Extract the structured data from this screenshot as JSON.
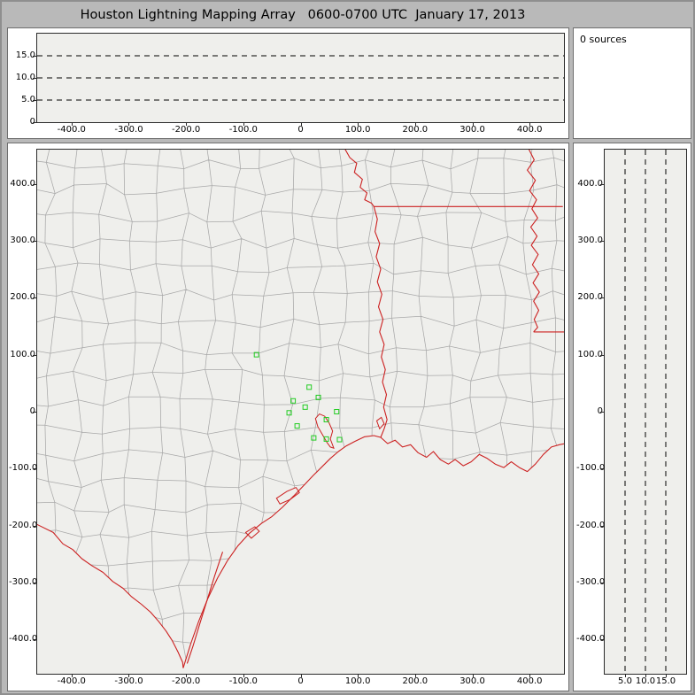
{
  "title": "Houston Lightning Mapping Array   0600-0700 UTC  January 17, 2013",
  "sources_label": "0 sources",
  "colors": {
    "frame_bg": "#b9b9b9",
    "panel_bg": "#ffffff",
    "plot_bg": "#efefec",
    "axis": "#2a2a2a",
    "county_line": "#a8a8a8",
    "state_boundary": "#cc2020",
    "station_marker": "#22cc22",
    "dashed_line": "#000000",
    "text": "#000000"
  },
  "chart_data": [
    {
      "id": "alt-ew",
      "type": "scatter",
      "desc": "altitude (km) vs east-west distance (km); no source points plotted this hour",
      "xlim": [
        -460,
        460
      ],
      "ylim": [
        0,
        20
      ],
      "x_ticks": [
        {
          "v": -400,
          "t": "-400.0"
        },
        {
          "v": -300,
          "t": "-300.0"
        },
        {
          "v": -200,
          "t": "-200.0"
        },
        {
          "v": -100,
          "t": "-100.0"
        },
        {
          "v": 0,
          "t": "0"
        },
        {
          "v": 100,
          "t": "100.0"
        },
        {
          "v": 200,
          "t": "200.0"
        },
        {
          "v": 300,
          "t": "300.0"
        },
        {
          "v": 400,
          "t": "400.0"
        }
      ],
      "y_ticks": [
        {
          "v": 15,
          "t": "15.0"
        },
        {
          "v": 10,
          "t": "10.0"
        },
        {
          "v": 5,
          "t": "5.0"
        },
        {
          "v": 0,
          "t": "0"
        }
      ],
      "dashed_y": [
        5,
        10,
        15
      ],
      "points": []
    },
    {
      "id": "plan-view",
      "type": "scatter",
      "desc": "plan-view map (km east-west vs km north-south) with county and state boundaries and LMA station markers; no source points plotted this hour",
      "xlim": [
        -460,
        460
      ],
      "ylim": [
        -460,
        460
      ],
      "x_ticks": [
        {
          "v": -400,
          "t": "-400.0"
        },
        {
          "v": -300,
          "t": "-300.0"
        },
        {
          "v": -200,
          "t": "-200.0"
        },
        {
          "v": -100,
          "t": "-100.0"
        },
        {
          "v": 0,
          "t": "0"
        },
        {
          "v": 100,
          "t": "100.0"
        },
        {
          "v": 200,
          "t": "200.0"
        },
        {
          "v": 300,
          "t": "300.0"
        },
        {
          "v": 400,
          "t": "400.0"
        }
      ],
      "y_ticks": [
        {
          "v": 400,
          "t": "400.0"
        },
        {
          "v": 300,
          "t": "300.0"
        },
        {
          "v": 200,
          "t": "200.0"
        },
        {
          "v": 100,
          "t": "100.0"
        },
        {
          "v": 0,
          "t": "0"
        },
        {
          "v": -100,
          "t": "-100.0"
        },
        {
          "v": -200,
          "t": "-200.0"
        },
        {
          "v": -300,
          "t": "-300.0"
        },
        {
          "v": -400,
          "t": "-400.0"
        }
      ],
      "stations": [
        [
          -77,
          100
        ],
        [
          15,
          43
        ],
        [
          -13,
          19
        ],
        [
          31,
          25
        ],
        [
          8,
          8
        ],
        [
          -20,
          -2
        ],
        [
          -6,
          -25
        ],
        [
          45,
          -14
        ],
        [
          63,
          0
        ],
        [
          23,
          -46
        ],
        [
          45,
          -48
        ],
        [
          68,
          -49
        ]
      ],
      "points": []
    },
    {
      "id": "alt-ns",
      "type": "scatter",
      "desc": "north-south distance (km) vs altitude (km); no source points plotted this hour",
      "xlim": [
        0,
        20
      ],
      "ylim": [
        -460,
        460
      ],
      "x_ticks": [
        {
          "v": 5,
          "t": "5.0"
        },
        {
          "v": 10,
          "t": "10.0"
        },
        {
          "v": 15,
          "t": "15.0"
        }
      ],
      "y_ticks": [
        {
          "v": 400,
          "t": "400.0"
        },
        {
          "v": 300,
          "t": "300.0"
        },
        {
          "v": 200,
          "t": "200.0"
        },
        {
          "v": 100,
          "t": "100.0"
        },
        {
          "v": 0,
          "t": "0"
        },
        {
          "v": -100,
          "t": "-100.0"
        },
        {
          "v": -200,
          "t": "-200.0"
        },
        {
          "v": -300,
          "t": "-300.0"
        },
        {
          "v": -400,
          "t": "-400.0"
        }
      ],
      "dashed_x": [
        5,
        10,
        15
      ],
      "points": []
    }
  ]
}
